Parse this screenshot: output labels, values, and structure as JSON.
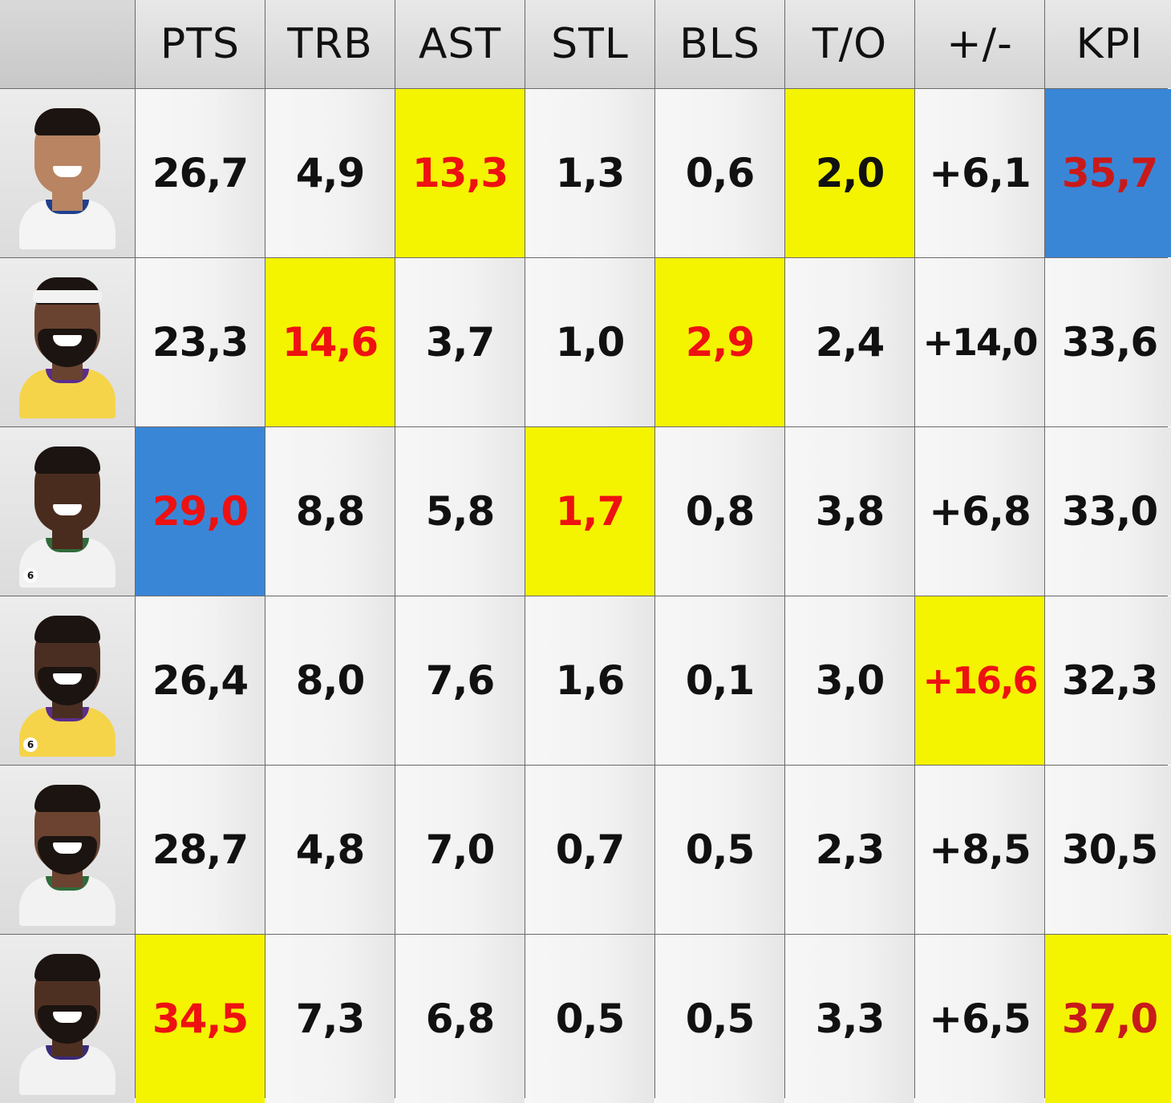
{
  "headers": [
    "PTS",
    "TRB",
    "AST",
    "STL",
    "BLS",
    "T/O",
    "+/-",
    "KPI"
  ],
  "players": [
    {
      "avatar": {
        "skin": "#b88462",
        "jersey": "#f4f4f4",
        "trim": "#1f3f8f",
        "beard": false,
        "headband": false
      },
      "cells": [
        {
          "text": "26,7",
          "bg": "",
          "color": ""
        },
        {
          "text": "4,9",
          "bg": "",
          "color": ""
        },
        {
          "text": "13,3",
          "bg": "yellow",
          "color": "red"
        },
        {
          "text": "1,3",
          "bg": "",
          "color": ""
        },
        {
          "text": "0,6",
          "bg": "",
          "color": ""
        },
        {
          "text": "2,0",
          "bg": "yellow",
          "color": ""
        },
        {
          "text": "+6,1",
          "bg": "",
          "color": ""
        },
        {
          "text": "35,7",
          "bg": "blue",
          "color": "dark-red"
        }
      ]
    },
    {
      "avatar": {
        "skin": "#6a4330",
        "jersey": "#f5d44a",
        "trim": "#5b2d8e",
        "beard": true,
        "headband": true
      },
      "cells": [
        {
          "text": "23,3",
          "bg": "",
          "color": ""
        },
        {
          "text": "14,6",
          "bg": "yellow",
          "color": "red"
        },
        {
          "text": "3,7",
          "bg": "",
          "color": ""
        },
        {
          "text": "1,0",
          "bg": "",
          "color": ""
        },
        {
          "text": "2,9",
          "bg": "yellow",
          "color": "red"
        },
        {
          "text": "2,4",
          "bg": "",
          "color": ""
        },
        {
          "text": "+14,0",
          "bg": "",
          "color": ""
        },
        {
          "text": "33,6",
          "bg": "",
          "color": ""
        }
      ]
    },
    {
      "avatar": {
        "skin": "#4a2c1e",
        "jersey": "#f2f2f2",
        "trim": "#2f6b3a",
        "beard": false,
        "headband": false,
        "number": "6"
      },
      "cells": [
        {
          "text": "29,0",
          "bg": "blue",
          "color": "red"
        },
        {
          "text": "8,8",
          "bg": "",
          "color": ""
        },
        {
          "text": "5,8",
          "bg": "",
          "color": ""
        },
        {
          "text": "1,7",
          "bg": "yellow",
          "color": "red"
        },
        {
          "text": "0,8",
          "bg": "",
          "color": ""
        },
        {
          "text": "3,8",
          "bg": "",
          "color": ""
        },
        {
          "text": "+6,8",
          "bg": "",
          "color": ""
        },
        {
          "text": "33,0",
          "bg": "",
          "color": ""
        }
      ]
    },
    {
      "avatar": {
        "skin": "#4a2e22",
        "jersey": "#f5d44a",
        "trim": "#5b2d8e",
        "beard": true,
        "headband": false,
        "number": "6"
      },
      "cells": [
        {
          "text": "26,4",
          "bg": "",
          "color": ""
        },
        {
          "text": "8,0",
          "bg": "",
          "color": ""
        },
        {
          "text": "7,6",
          "bg": "",
          "color": ""
        },
        {
          "text": "1,6",
          "bg": "",
          "color": ""
        },
        {
          "text": "0,1",
          "bg": "",
          "color": ""
        },
        {
          "text": "3,0",
          "bg": "",
          "color": ""
        },
        {
          "text": "+16,6",
          "bg": "yellow",
          "color": "red"
        },
        {
          "text": "32,3",
          "bg": "",
          "color": ""
        }
      ]
    },
    {
      "avatar": {
        "skin": "#6b4330",
        "jersey": "#f2f2f2",
        "trim": "#2f6b3a",
        "beard": true,
        "headband": false
      },
      "cells": [
        {
          "text": "28,7",
          "bg": "",
          "color": ""
        },
        {
          "text": "4,8",
          "bg": "",
          "color": ""
        },
        {
          "text": "7,0",
          "bg": "",
          "color": ""
        },
        {
          "text": "0,7",
          "bg": "",
          "color": ""
        },
        {
          "text": "0,5",
          "bg": "",
          "color": ""
        },
        {
          "text": "2,3",
          "bg": "",
          "color": ""
        },
        {
          "text": "+8,5",
          "bg": "",
          "color": ""
        },
        {
          "text": "30,5",
          "bg": "",
          "color": ""
        }
      ]
    },
    {
      "avatar": {
        "skin": "#4e3022",
        "jersey": "#f2f2f2",
        "trim": "#3b2a7a",
        "beard": true,
        "headband": false
      },
      "cells": [
        {
          "text": "34,5",
          "bg": "yellow",
          "color": "red"
        },
        {
          "text": "7,3",
          "bg": "",
          "color": ""
        },
        {
          "text": "6,8",
          "bg": "",
          "color": ""
        },
        {
          "text": "0,5",
          "bg": "",
          "color": ""
        },
        {
          "text": "0,5",
          "bg": "",
          "color": ""
        },
        {
          "text": "3,3",
          "bg": "",
          "color": ""
        },
        {
          "text": "+6,5",
          "bg": "",
          "color": ""
        },
        {
          "text": "37,0",
          "bg": "yellow",
          "color": "dark-red"
        }
      ]
    }
  ],
  "colors": {
    "highlight_yellow": "#f4f400",
    "highlight_blue": "#3a86d6",
    "value_red": "#ee1111",
    "value_dark_red": "#c81a1a",
    "value_default": "#111111"
  }
}
